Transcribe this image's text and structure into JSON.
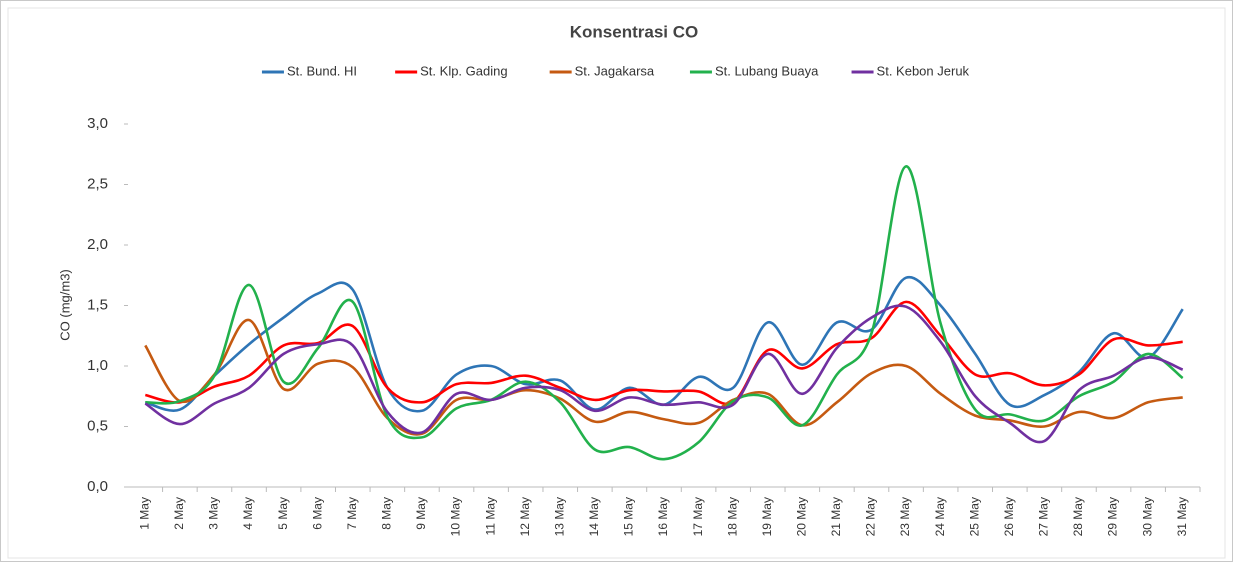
{
  "chart_data": {
    "type": "line",
    "title": "Konsentrasi CO",
    "y_label": "CO (mg/m3)",
    "categories": [
      "1 May",
      "2 May",
      "3 May",
      "4 May",
      "5 May",
      "6 May",
      "7 May",
      "8 May",
      "9 May",
      "10 May",
      "11 May",
      "12 May",
      "13 May",
      "14 May",
      "15 May",
      "16 May",
      "17 May",
      "18 May",
      "19 May",
      "20 May",
      "21 May",
      "22 May",
      "23 May",
      "24 May",
      "25 May",
      "26 May",
      "27 May",
      "28 May",
      "29 May",
      "30 May",
      "31 May"
    ],
    "series": [
      {
        "name": "St. Bund. HI",
        "color": "#2e75b6",
        "values": [
          0.7,
          0.64,
          0.92,
          1.18,
          1.4,
          1.6,
          1.63,
          0.82,
          0.63,
          0.93,
          1.0,
          0.85,
          0.88,
          0.64,
          0.82,
          0.68,
          0.91,
          0.82,
          1.36,
          1.01,
          1.36,
          1.3,
          1.73,
          1.5,
          1.1,
          0.68,
          0.76,
          0.95,
          1.27,
          1.07,
          1.47
        ]
      },
      {
        "name": "St. Klp. Gading",
        "color": "#ff0000",
        "values": [
          0.76,
          0.7,
          0.83,
          0.92,
          1.17,
          1.19,
          1.33,
          0.82,
          0.7,
          0.85,
          0.86,
          0.92,
          0.82,
          0.72,
          0.8,
          0.79,
          0.79,
          0.7,
          1.13,
          0.98,
          1.18,
          1.23,
          1.53,
          1.25,
          0.93,
          0.94,
          0.84,
          0.93,
          1.22,
          1.17,
          1.2
        ]
      },
      {
        "name": "St. Jagakarsa",
        "color": "#c55a11",
        "values": [
          1.17,
          0.71,
          0.93,
          1.38,
          0.81,
          1.02,
          0.99,
          0.57,
          0.44,
          0.72,
          0.72,
          0.8,
          0.73,
          0.54,
          0.62,
          0.56,
          0.53,
          0.72,
          0.77,
          0.51,
          0.7,
          0.94,
          1.0,
          0.77,
          0.59,
          0.55,
          0.5,
          0.62,
          0.57,
          0.7,
          0.74
        ]
      },
      {
        "name": "St. Lubang Buaya",
        "color": "#22b14c",
        "values": [
          0.7,
          0.71,
          0.92,
          1.67,
          0.87,
          1.15,
          1.53,
          0.58,
          0.41,
          0.65,
          0.72,
          0.87,
          0.7,
          0.31,
          0.33,
          0.23,
          0.37,
          0.71,
          0.74,
          0.51,
          0.93,
          1.27,
          2.65,
          1.35,
          0.64,
          0.6,
          0.55,
          0.75,
          0.87,
          1.1,
          0.9
        ]
      },
      {
        "name": "St. Kebon Jeruk",
        "color": "#7030a0",
        "values": [
          0.69,
          0.52,
          0.69,
          0.82,
          1.1,
          1.18,
          1.17,
          0.62,
          0.45,
          0.77,
          0.72,
          0.82,
          0.8,
          0.63,
          0.74,
          0.68,
          0.7,
          0.68,
          1.1,
          0.77,
          1.15,
          1.4,
          1.49,
          1.2,
          0.75,
          0.53,
          0.38,
          0.8,
          0.92,
          1.07,
          0.97
        ]
      }
    ],
    "ylim": [
      0,
      3
    ],
    "yticks": [
      {
        "value": 0,
        "label": "0,0"
      },
      {
        "value": 0.5,
        "label": "0,5"
      },
      {
        "value": 1,
        "label": "1,0"
      },
      {
        "value": 1.5,
        "label": "1,5"
      },
      {
        "value": 2,
        "label": "2,0"
      },
      {
        "value": 2.5,
        "label": "2,5"
      },
      {
        "value": 3,
        "label": "3,0"
      }
    ],
    "grid": false,
    "legend": "top"
  }
}
